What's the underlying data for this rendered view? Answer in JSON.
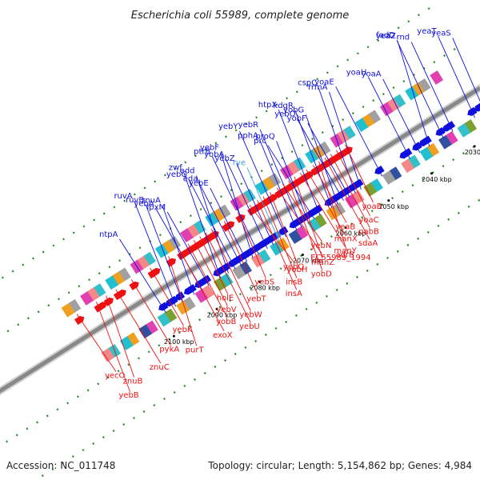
{
  "title": "Escherichia coli 55989, complete genome",
  "footer": {
    "accession": "Accession: NC_011748",
    "stats": "Topology: circular; Length: 5,154,862 bp; Genes: 4,984"
  },
  "colors": {
    "forward": "#1010dd",
    "reverse": "#ee1111",
    "rna": "#3aa0ee",
    "backbone": "#888888",
    "tick": "#1e8a1e"
  },
  "kbp_ticks": [
    {
      "label": "2030 kbp",
      "t": 0.062
    },
    {
      "label": "2040 kbp",
      "t": 0.15
    },
    {
      "label": "2050 kbp",
      "t": 0.238
    },
    {
      "label": "2060 kbp",
      "t": 0.326
    },
    {
      "label": "2070 kbp",
      "t": 0.414
    },
    {
      "label": "2080 kbp",
      "t": 0.502
    },
    {
      "label": "2090 kbp",
      "t": 0.59
    },
    {
      "label": "2100 kbp",
      "t": 0.678
    }
  ],
  "forward_genes": [
    {
      "label": "yeaS",
      "t": 0.015
    },
    {
      "label": "yeaT",
      "t": 0.035
    },
    {
      "label": "rnd",
      "t": 0.08
    },
    {
      "label": "fadD",
      "t": 0.1
    },
    {
      "label": "yeaZ",
      "t": 0.128
    },
    {
      "label": "yoaA",
      "t": 0.148
    },
    {
      "label": "yoaH",
      "t": 0.168
    },
    {
      "label": "yoaE",
      "t": 0.225
    },
    {
      "label": "rrmA",
      "t": 0.268
    },
    {
      "label": "cspC",
      "t": 0.28
    },
    {
      "label": "yobF",
      "t": 0.292
    },
    {
      "label": "yebO",
      "t": 0.304
    },
    {
      "label": "yobG",
      "t": 0.316
    },
    {
      "label": "kdgR",
      "t": 0.328
    },
    {
      "label": "htpX",
      "t": 0.352
    },
    {
      "label": "prc",
      "t": 0.364
    },
    {
      "label": "proQ",
      "t": 0.376
    },
    {
      "label": "pphA",
      "t": 0.4
    },
    {
      "label": "yebR",
      "t": 0.39
    },
    {
      "label": "yebY",
      "t": 0.422
    },
    {
      "label": "rye",
      "t": 0.436,
      "rna": true
    },
    {
      "label": "yebZ",
      "t": 0.448
    },
    {
      "label": "yobA",
      "t": 0.46
    },
    {
      "label": "ptrB",
      "t": 0.478
    },
    {
      "label": "yebF",
      "t": 0.49
    },
    {
      "label": "yebE",
      "t": 0.502
    },
    {
      "label": "eda",
      "t": 0.514
    },
    {
      "label": "yebG",
      "t": 0.526
    },
    {
      "label": "edd",
      "t": 0.54
    },
    {
      "label": "zwf",
      "t": 0.556
    },
    {
      "label": "lpxM",
      "t": 0.58
    },
    {
      "label": "yebA",
      "t": 0.594
    },
    {
      "label": "znuA",
      "t": 0.61
    },
    {
      "label": "ruvB",
      "t": 0.634
    },
    {
      "label": "ruvA",
      "t": 0.648
    },
    {
      "label": "ntpA",
      "t": 0.668
    }
  ],
  "reverse_genes": [
    {
      "label": "yoaB",
      "t": 0.25
    },
    {
      "label": "yoaC",
      "t": 0.268
    },
    {
      "label": "pabB",
      "t": 0.28
    },
    {
      "label": "sdaA",
      "t": 0.292
    },
    {
      "label": "adrB",
      "t": 0.304
    },
    {
      "label": "yeaB",
      "t": 0.316
    },
    {
      "label": "manX",
      "t": 0.33
    },
    {
      "label": "manY",
      "t": 0.342
    },
    {
      "label": "manZ",
      "t": 0.354
    },
    {
      "label": "yobD",
      "t": 0.366
    },
    {
      "label": "yebN",
      "t": 0.378
    },
    {
      "label": "EC55989_1994",
      "t": 0.39
    },
    {
      "label": "yobH",
      "t": 0.404
    },
    {
      "label": "insB",
      "t": 0.418
    },
    {
      "label": "insA",
      "t": 0.43
    },
    {
      "label": "yebQ",
      "t": 0.446
    },
    {
      "label": "yebS",
      "t": 0.47
    },
    {
      "label": "yebT",
      "t": 0.498
    },
    {
      "label": "yebW",
      "t": 0.524
    },
    {
      "label": "yebU",
      "t": 0.536
    },
    {
      "label": "holE",
      "t": 0.548
    },
    {
      "label": "yebV",
      "t": 0.56
    },
    {
      "label": "yobB",
      "t": 0.572
    },
    {
      "label": "exoX",
      "t": 0.59
    },
    {
      "label": "purT",
      "t": 0.612
    },
    {
      "label": "yebK",
      "t": 0.65
    },
    {
      "label": "pykA",
      "t": 0.688
    },
    {
      "label": "znuC",
      "t": 0.72
    },
    {
      "label": "znuB",
      "t": 0.74
    },
    {
      "label": "yebB",
      "t": 0.76
    },
    {
      "label": "yecO",
      "t": 0.8
    }
  ]
}
